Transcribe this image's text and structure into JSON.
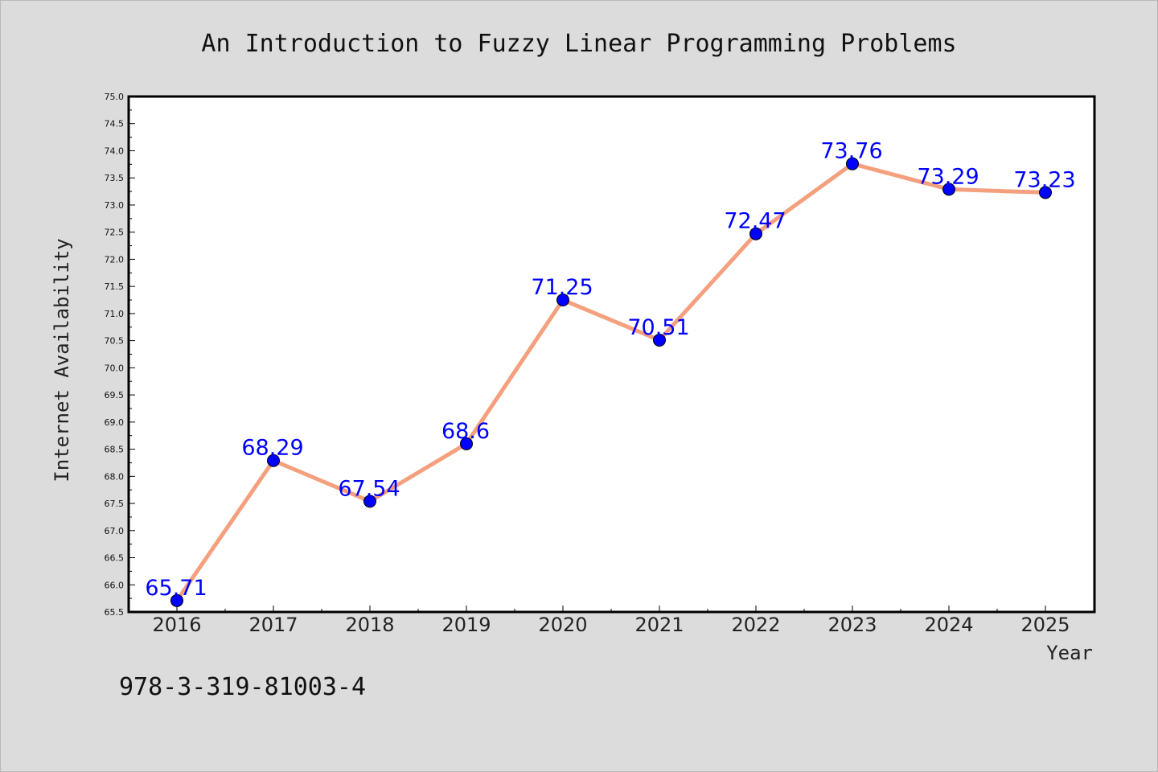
{
  "isbn_text": "978-3-319-81003-4",
  "colors": {
    "line": "#f4a07e",
    "marker": "#0000ff",
    "label": "#0000ff",
    "background": "#dcdcdc",
    "plot_bg": "#ffffff"
  },
  "chart_data": {
    "type": "line",
    "title": "An Introduction to Fuzzy Linear Programming Problems",
    "xlabel": "Year",
    "ylabel": "Internet Availability",
    "categories": [
      "2016",
      "2017",
      "2018",
      "2019",
      "2020",
      "2021",
      "2022",
      "2023",
      "2024",
      "2025"
    ],
    "series": [
      {
        "values": [
          65.71,
          68.29,
          67.54,
          68.6,
          71.25,
          70.51,
          72.47,
          73.76,
          73.29,
          73.23
        ],
        "labels": [
          "65.71",
          "68.29",
          "67.54",
          "68.6",
          "71.25",
          "70.51",
          "72.47",
          "73.76",
          "73.29",
          "73.23"
        ]
      }
    ],
    "ylim": [
      65.5,
      75.0
    ],
    "yticks": [
      "65.5",
      "66.0",
      "66.5",
      "67.0",
      "67.5",
      "68.0",
      "68.5",
      "69.0",
      "69.5",
      "70.0",
      "70.5",
      "71.0",
      "71.5",
      "72.0",
      "72.5",
      "73.0",
      "73.5",
      "74.0",
      "74.5",
      "75.0"
    ],
    "grid": false,
    "legend": "none"
  }
}
